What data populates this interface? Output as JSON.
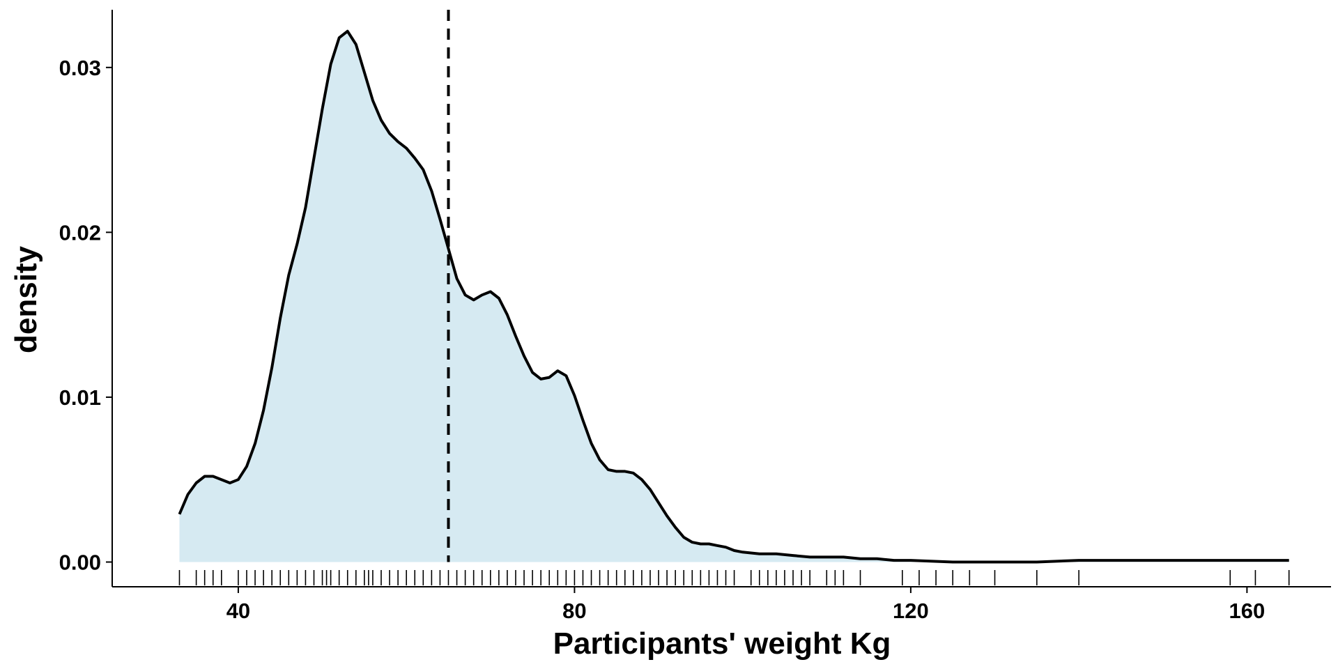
{
  "chart_data": {
    "type": "area",
    "title": "",
    "xlabel": "Participants' weight Kg",
    "ylabel": "density",
    "xlim": [
      25,
      170
    ],
    "ylim": [
      -0.0015,
      0.0335
    ],
    "x_ticks": [
      40,
      80,
      120,
      160
    ],
    "x_tick_labels": [
      "40",
      "80",
      "120",
      "160"
    ],
    "y_ticks": [
      0.0,
      0.01,
      0.02,
      0.03
    ],
    "y_tick_labels": [
      "0.00",
      "0.01",
      "0.02",
      "0.03"
    ],
    "grid": false,
    "fill_color": "#d6eaf2",
    "line_color": "#000000",
    "mean_line_x": 65,
    "density_curve": {
      "x": [
        33,
        34,
        35,
        36,
        37,
        38,
        39,
        40,
        41,
        42,
        43,
        44,
        45,
        46,
        47,
        48,
        49,
        50,
        51,
        52,
        53,
        54,
        55,
        56,
        57,
        58,
        59,
        60,
        61,
        62,
        63,
        64,
        65,
        66,
        67,
        68,
        69,
        70,
        71,
        72,
        73,
        74,
        75,
        76,
        77,
        78,
        79,
        80,
        81,
        82,
        83,
        84,
        85,
        86,
        87,
        88,
        89,
        90,
        91,
        92,
        93,
        94,
        95,
        96,
        97,
        98,
        99,
        100,
        102,
        104,
        106,
        108,
        110,
        112,
        114,
        116,
        118,
        120,
        125,
        130,
        135,
        140,
        145,
        150,
        155,
        160,
        165
      ],
      "y": [
        0.0029,
        0.0041,
        0.0048,
        0.0052,
        0.0052,
        0.005,
        0.0048,
        0.005,
        0.0058,
        0.0072,
        0.0092,
        0.0118,
        0.0148,
        0.0174,
        0.0193,
        0.0215,
        0.0245,
        0.0275,
        0.0302,
        0.0318,
        0.0322,
        0.0314,
        0.0297,
        0.028,
        0.0268,
        0.026,
        0.0255,
        0.0251,
        0.0245,
        0.0238,
        0.0225,
        0.0208,
        0.019,
        0.0172,
        0.0162,
        0.0159,
        0.0162,
        0.0164,
        0.016,
        0.015,
        0.0137,
        0.0125,
        0.0115,
        0.0111,
        0.0112,
        0.0116,
        0.0113,
        0.0101,
        0.0086,
        0.0072,
        0.0062,
        0.0056,
        0.0055,
        0.0055,
        0.0054,
        0.005,
        0.0044,
        0.0036,
        0.0028,
        0.0021,
        0.0015,
        0.0012,
        0.0011,
        0.0011,
        0.001,
        0.0009,
        0.0007,
        0.0006,
        0.0005,
        0.0005,
        0.0004,
        0.0003,
        0.0003,
        0.0003,
        0.0002,
        0.0002,
        0.0001,
        0.0001,
        0.0,
        0.0,
        0.0,
        0.0001,
        0.0001,
        0.0001,
        0.0001,
        0.0001,
        0.0001
      ]
    },
    "rug_x": [
      33,
      35,
      36,
      37,
      38,
      40,
      41,
      42,
      43,
      44,
      45,
      46,
      47,
      48,
      49,
      50,
      50.5,
      51,
      52,
      53,
      54,
      55,
      55.5,
      56,
      57,
      58,
      59,
      60,
      61,
      62,
      63,
      64,
      65,
      66,
      67,
      68,
      69,
      70,
      71,
      72,
      73,
      74,
      75,
      76,
      77,
      78,
      79,
      80,
      81,
      82,
      83,
      84,
      85,
      86,
      87,
      88,
      89,
      90,
      91,
      92,
      93,
      94,
      95,
      96,
      97,
      98,
      99,
      101,
      102,
      103,
      104,
      105,
      106,
      107,
      108,
      110,
      111,
      112,
      114,
      119,
      121,
      123,
      125,
      127,
      130,
      135,
      140,
      158,
      161,
      165
    ]
  }
}
